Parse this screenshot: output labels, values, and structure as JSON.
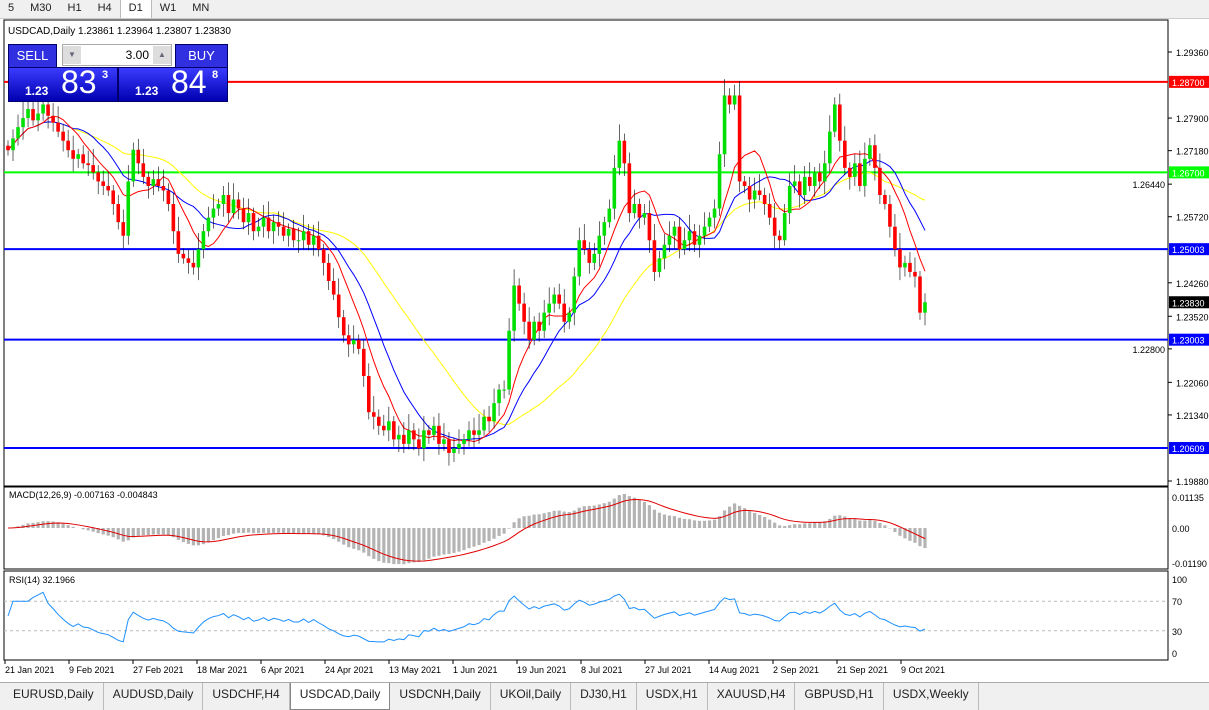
{
  "timeframes": [
    "5",
    "M30",
    "H1",
    "H4",
    "D1",
    "W1",
    "MN"
  ],
  "active_timeframe": "D1",
  "symbol_header": "USDCAD,Daily  1.23861 1.23964 1.23807 1.23830",
  "trade_panel": {
    "sell_label": "SELL",
    "buy_label": "BUY",
    "lot": "3.00",
    "sell_big": "1.23",
    "sell_main": "83",
    "sell_pip": "3",
    "buy_big": "1.23",
    "buy_main": "84",
    "buy_pip": "8"
  },
  "macd_label": "MACD(12,26,9) -0.007163 -0.004843",
  "rsi_label": "RSI(14) 32.1966",
  "tabs": [
    "EURUSD,Daily",
    "AUDUSD,Daily",
    "USDCHF,H4",
    "USDCAD,Daily",
    "USDCNH,Daily",
    "UKOil,Daily",
    "DJ30,H1",
    "USDX,H1",
    "XAUUSD,H4",
    "GBPUSD,H1",
    "USDX,Weekly"
  ],
  "active_tab": "USDCAD,Daily",
  "colors": {
    "bull": "#00e000",
    "bear": "#ff0000",
    "ma_fast": "#ff0000",
    "ma_mid": "#0000ff",
    "ma_slow": "#ffff00",
    "panel": "#2020d0"
  },
  "chart_data": {
    "type": "candlestick",
    "symbol": "USDCAD",
    "timeframe": "Daily",
    "ylim": [
      1.1988,
      1.2936
    ],
    "y_ticks": [
      "1.29360",
      "1.27900",
      "1.27180",
      "1.26440",
      "1.25720",
      "1.24260",
      "1.23520",
      "1.22800",
      "1.22060",
      "1.21340",
      "1.19880"
    ],
    "x_tick_labels": [
      "21 Jan 2021",
      "9 Feb 2021",
      "27 Feb 2021",
      "18 Mar 2021",
      "6 Apr 2021",
      "24 Apr 2021",
      "13 May 2021",
      "1 Jun 2021",
      "19 Jun 2021",
      "8 Jul 2021",
      "27 Jul 2021",
      "14 Aug 2021",
      "2 Sep 2021",
      "21 Sep 2021",
      "9 Oct 2021"
    ],
    "levels": [
      {
        "price": "1.28700",
        "color": "#ff0000"
      },
      {
        "price": "1.26700",
        "color": "#00ff00"
      },
      {
        "price": "1.25003",
        "color": "#0000ff"
      },
      {
        "price": "1.23003",
        "color": "#0000ff"
      },
      {
        "price": "1.20609",
        "color": "#0000ff"
      }
    ],
    "last_price": "1.23830",
    "closes": [
      1.2719,
      1.2745,
      1.277,
      1.279,
      1.281,
      1.2785,
      1.28,
      1.282,
      1.2795,
      1.278,
      1.276,
      1.274,
      1.2719,
      1.27,
      1.271,
      1.269,
      1.2686,
      1.267,
      1.265,
      1.264,
      1.263,
      1.26,
      1.256,
      1.253,
      1.265,
      1.272,
      1.269,
      1.266,
      1.264,
      1.2655,
      1.264,
      1.263,
      1.26,
      1.254,
      1.249,
      1.248,
      1.247,
      1.246,
      1.25,
      1.254,
      1.257,
      1.259,
      1.26,
      1.262,
      1.258,
      1.261,
      1.259,
      1.256,
      1.258,
      1.254,
      1.255,
      1.257,
      1.254,
      1.256,
      1.255,
      1.253,
      1.2545,
      1.252,
      1.252,
      1.254,
      1.251,
      1.253,
      1.25,
      1.247,
      1.243,
      1.24,
      1.235,
      1.231,
      1.229,
      1.23,
      1.228,
      1.222,
      1.214,
      1.213,
      1.211,
      1.21,
      1.212,
      1.208,
      1.209,
      1.207,
      1.21,
      1.208,
      1.206,
      1.21,
      1.209,
      1.211,
      1.207,
      1.208,
      1.205,
      1.206,
      1.207,
      1.208,
      1.21,
      1.209,
      1.21,
      1.213,
      1.212,
      1.216,
      1.219,
      1.219,
      1.232,
      1.242,
      1.238,
      1.234,
      1.23,
      1.234,
      1.232,
      1.236,
      1.238,
      1.24,
      1.238,
      1.234,
      1.236,
      1.244,
      1.252,
      1.25,
      1.247,
      1.249,
      1.253,
      1.256,
      1.259,
      1.268,
      1.274,
      1.269,
      1.258,
      1.26,
      1.257,
      1.258,
      1.252,
      1.245,
      1.248,
      1.251,
      1.253,
      1.255,
      1.25,
      1.252,
      1.254,
      1.251,
      1.253,
      1.255,
      1.257,
      1.259,
      1.271,
      1.284,
      1.282,
      1.284,
      1.265,
      1.264,
      1.261,
      1.263,
      1.262,
      1.26,
      1.257,
      1.253,
      1.252,
      1.258,
      1.264,
      1.265,
      1.262,
      1.266,
      1.264,
      1.267,
      1.265,
      1.269,
      1.276,
      1.282,
      1.274,
      1.268,
      1.266,
      1.269,
      1.264,
      1.27,
      1.273,
      1.268,
      1.262,
      1.26,
      1.255,
      1.25,
      1.246,
      1.247,
      1.245,
      1.244,
      1.236,
      1.2383
    ],
    "macd": {
      "ylim": [
        -0.0119,
        0.01135
      ],
      "ticks": [
        "0.01135",
        "0.00",
        "-0.01190"
      ]
    },
    "rsi": {
      "ylim": [
        0,
        100
      ],
      "ticks": [
        "100",
        "70",
        "30",
        "0"
      ],
      "levels": [
        70,
        30
      ]
    }
  }
}
